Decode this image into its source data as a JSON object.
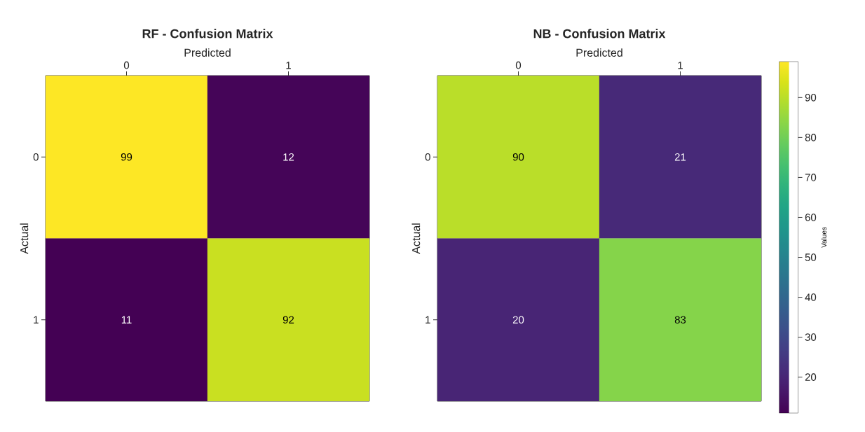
{
  "chart_data": [
    {
      "type": "heatmap",
      "title": "RF - Confusion Matrix",
      "xlabel": "Predicted",
      "ylabel": "Actual",
      "categories": [
        "0",
        "1"
      ],
      "y_categories": [
        "0",
        "1"
      ],
      "cells": [
        [
          99,
          12
        ],
        [
          11,
          92
        ]
      ],
      "data_labels": true
    },
    {
      "type": "heatmap",
      "title": "NB - Confusion Matrix",
      "xlabel": "Predicted",
      "ylabel": "Actual",
      "categories": [
        "0",
        "1"
      ],
      "y_categories": [
        "0",
        "1"
      ],
      "cells": [
        [
          90,
          21
        ],
        [
          20,
          83
        ]
      ],
      "data_labels": true,
      "clim": [
        11,
        99
      ],
      "cticks": [
        20,
        30,
        40,
        50,
        60,
        70,
        80,
        90
      ],
      "clabel": "Values"
    }
  ]
}
